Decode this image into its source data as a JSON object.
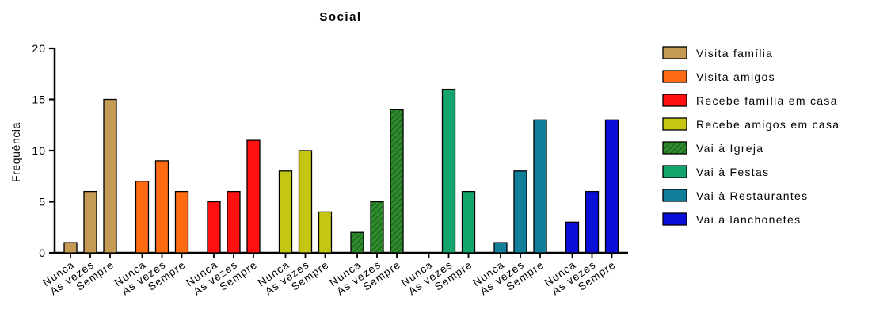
{
  "chart_data": {
    "type": "bar",
    "title": "Social",
    "xlabel": "",
    "ylabel": "Frequência",
    "ylim": [
      0,
      20
    ],
    "yticks": [
      "0",
      "5",
      "10",
      "15",
      "20"
    ],
    "grid": false,
    "legend_position": "right",
    "categories": [
      "Nunca",
      "As vezes",
      "Sempre"
    ],
    "series": [
      {
        "name": "Visita família",
        "values": [
          1,
          6,
          15
        ],
        "color": "#C49A55",
        "pattern": "solid"
      },
      {
        "name": "Visita amigos",
        "values": [
          7,
          9,
          6
        ],
        "color": "#FF6A13",
        "pattern": "solid"
      },
      {
        "name": "Recebe família em casa",
        "values": [
          5,
          6,
          11
        ],
        "color": "#FF1010",
        "pattern": "solid"
      },
      {
        "name": "Recebe amigos em casa",
        "values": [
          8,
          10,
          4
        ],
        "color": "#C5C514",
        "pattern": "solid"
      },
      {
        "name": "Vai à Igreja",
        "values": [
          2,
          5,
          14
        ],
        "color": "#2E8B2E",
        "pattern": "hatched"
      },
      {
        "name": "Vai à Festas",
        "values": [
          0,
          16,
          6
        ],
        "color": "#12A46B",
        "pattern": "solid"
      },
      {
        "name": "Vai à Restaurantes",
        "values": [
          1,
          8,
          13
        ],
        "color": "#0F7F9A",
        "pattern": "solid"
      },
      {
        "name": "Vai à lanchonetes",
        "values": [
          3,
          6,
          13
        ],
        "color": "#0A0FD8",
        "pattern": "solid"
      }
    ]
  }
}
